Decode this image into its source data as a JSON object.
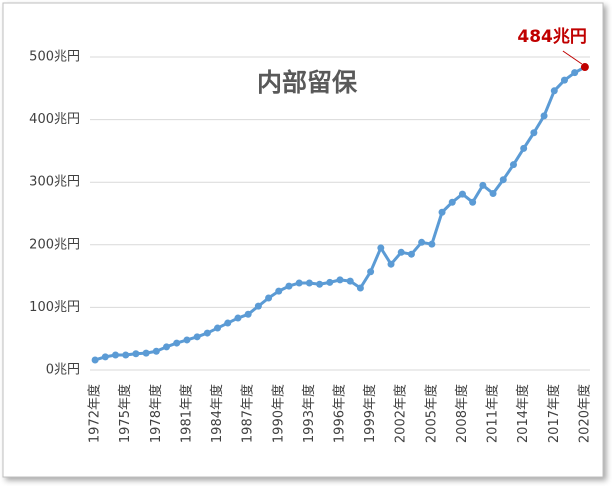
{
  "chart_data": {
    "type": "line",
    "title": "内部留保",
    "categories": [
      "1972年度",
      null,
      null,
      "1975年度",
      null,
      null,
      "1978年度",
      null,
      null,
      "1981年度",
      null,
      null,
      "1984年度",
      null,
      null,
      "1987年度",
      null,
      null,
      "1990年度",
      null,
      null,
      "1993年度",
      null,
      null,
      "1996年度",
      null,
      null,
      "1999年度",
      null,
      null,
      "2002年度",
      null,
      null,
      "2005年度",
      null,
      null,
      "2008年度",
      null,
      null,
      "2011年度",
      null,
      null,
      "2014年度",
      null,
      null,
      "2017年度",
      null,
      null,
      "2020年度"
    ],
    "values": [
      16,
      21,
      24,
      24,
      26,
      27,
      30,
      37,
      43,
      48,
      53,
      59,
      67,
      75,
      83,
      89,
      102,
      115,
      126,
      134,
      139,
      139,
      137,
      140,
      144,
      142,
      131,
      157,
      195,
      169,
      188,
      185,
      204,
      201,
      252,
      268,
      281,
      268,
      295,
      282,
      304,
      328,
      354,
      379,
      406,
      446,
      463,
      475,
      484
    ],
    "value_labels": [
      null,
      null,
      null,
      null,
      null,
      null,
      null,
      null,
      null,
      null,
      null,
      null,
      null,
      null,
      null,
      null,
      null,
      null,
      null,
      null,
      null,
      null,
      null,
      null,
      null,
      null,
      null,
      null,
      null,
      null,
      null,
      null,
      null,
      null,
      null,
      null,
      null,
      null,
      null,
      null,
      null,
      null,
      null,
      null,
      null,
      null,
      null,
      null,
      "484兆円"
    ],
    "color": "#5b9bd5",
    "highlight_color": "#c00000",
    "ylim": [
      0,
      500
    ],
    "yticks": [
      {
        "value": 0,
        "label": "0兆円"
      },
      {
        "value": 100,
        "label": "100兆円"
      },
      {
        "value": 200,
        "label": "200兆円"
      },
      {
        "value": 300,
        "label": "300兆円"
      },
      {
        "value": 400,
        "label": "400兆円"
      },
      {
        "value": 500,
        "label": "500兆円"
      }
    ],
    "grid": true
  }
}
